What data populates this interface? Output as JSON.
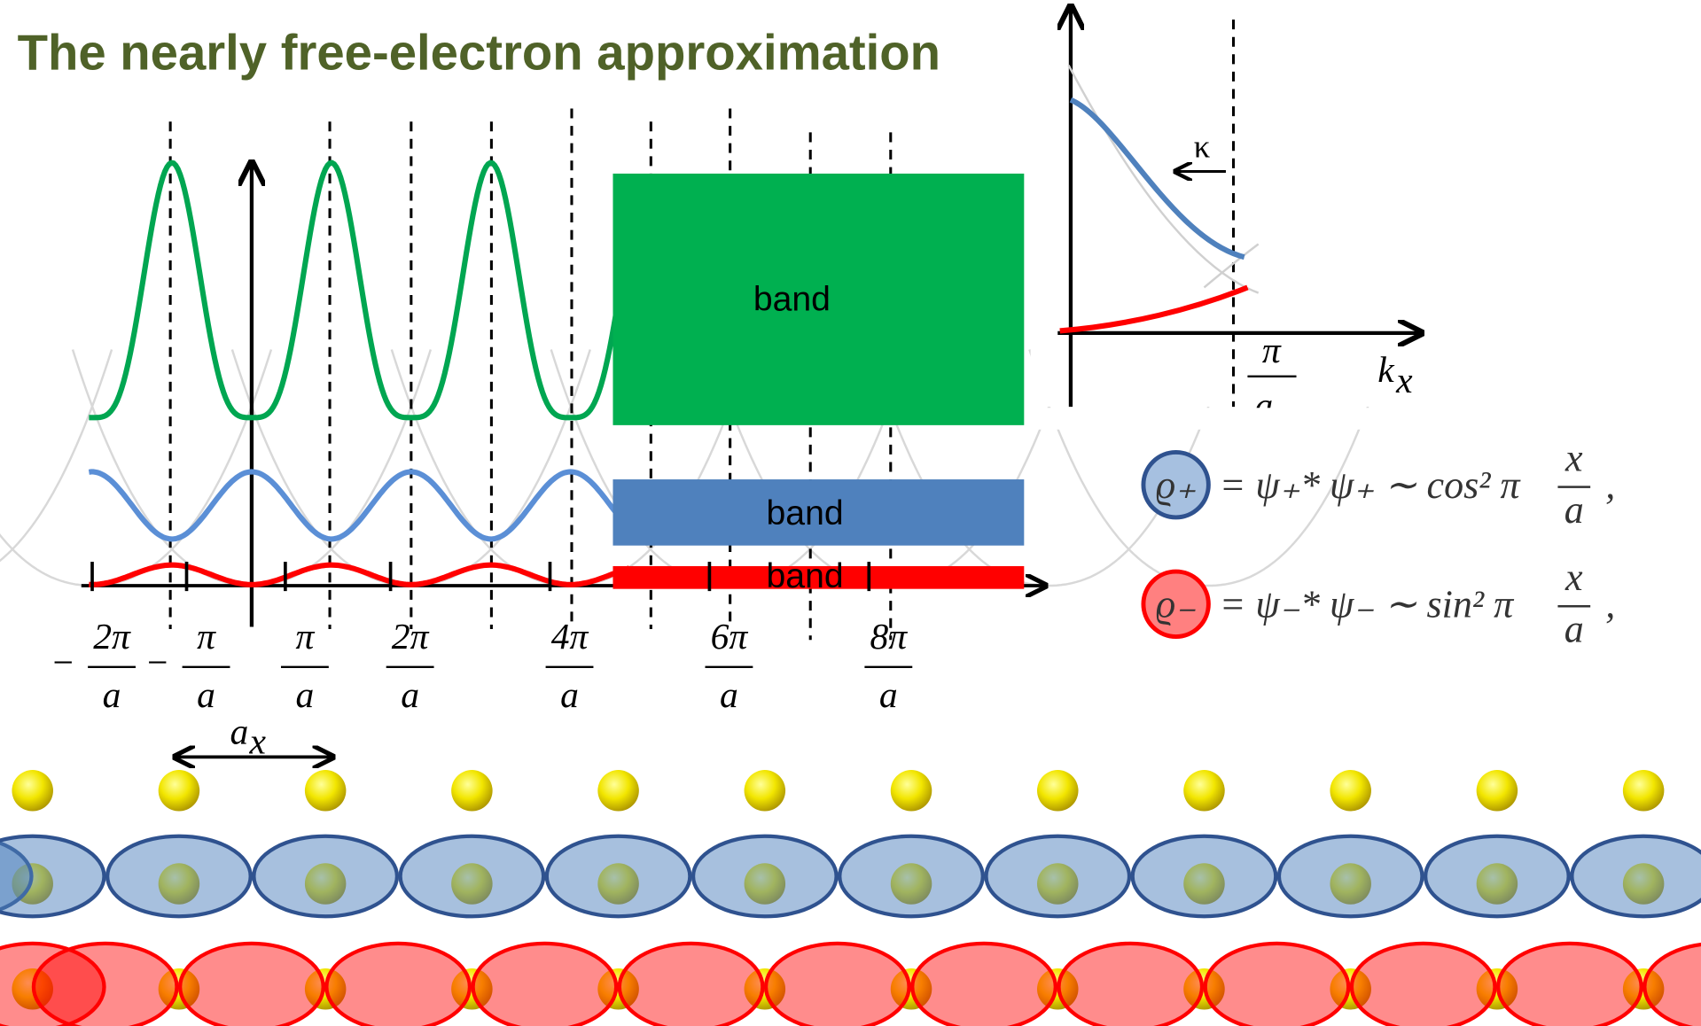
{
  "title": "The nearly free-electron approximation",
  "band_boxes": [
    "band",
    "band",
    "band"
  ],
  "dispersion": {
    "kappa": "κ",
    "k_num": "π",
    "k_den": "a",
    "axis_label": "k",
    "axis_sub": "x"
  },
  "k_ticks": [
    {
      "sign": "−",
      "num": "2π",
      "den": "a"
    },
    {
      "sign": "−",
      "num": "π",
      "den": "a"
    },
    {
      "num": "π",
      "den": "a"
    },
    {
      "num": "2π",
      "den": "a"
    },
    {
      "num": "4π",
      "den": "a"
    },
    {
      "num": "6π",
      "den": "a"
    },
    {
      "num": "8π",
      "den": "a"
    }
  ],
  "lattice_label": {
    "main": "a",
    "sub": "x"
  },
  "equations": [
    {
      "symbol": "ϱ₊",
      "lhs": "= ψ₊* ψ₊ ∼ cos² π",
      "num": "x",
      "den": "a",
      "tail": ","
    },
    {
      "symbol": "ϱ₋",
      "lhs": "= ψ₋* ψ₋ ∼ sin² π",
      "num": "x",
      "den": "a",
      "tail": ","
    }
  ]
}
